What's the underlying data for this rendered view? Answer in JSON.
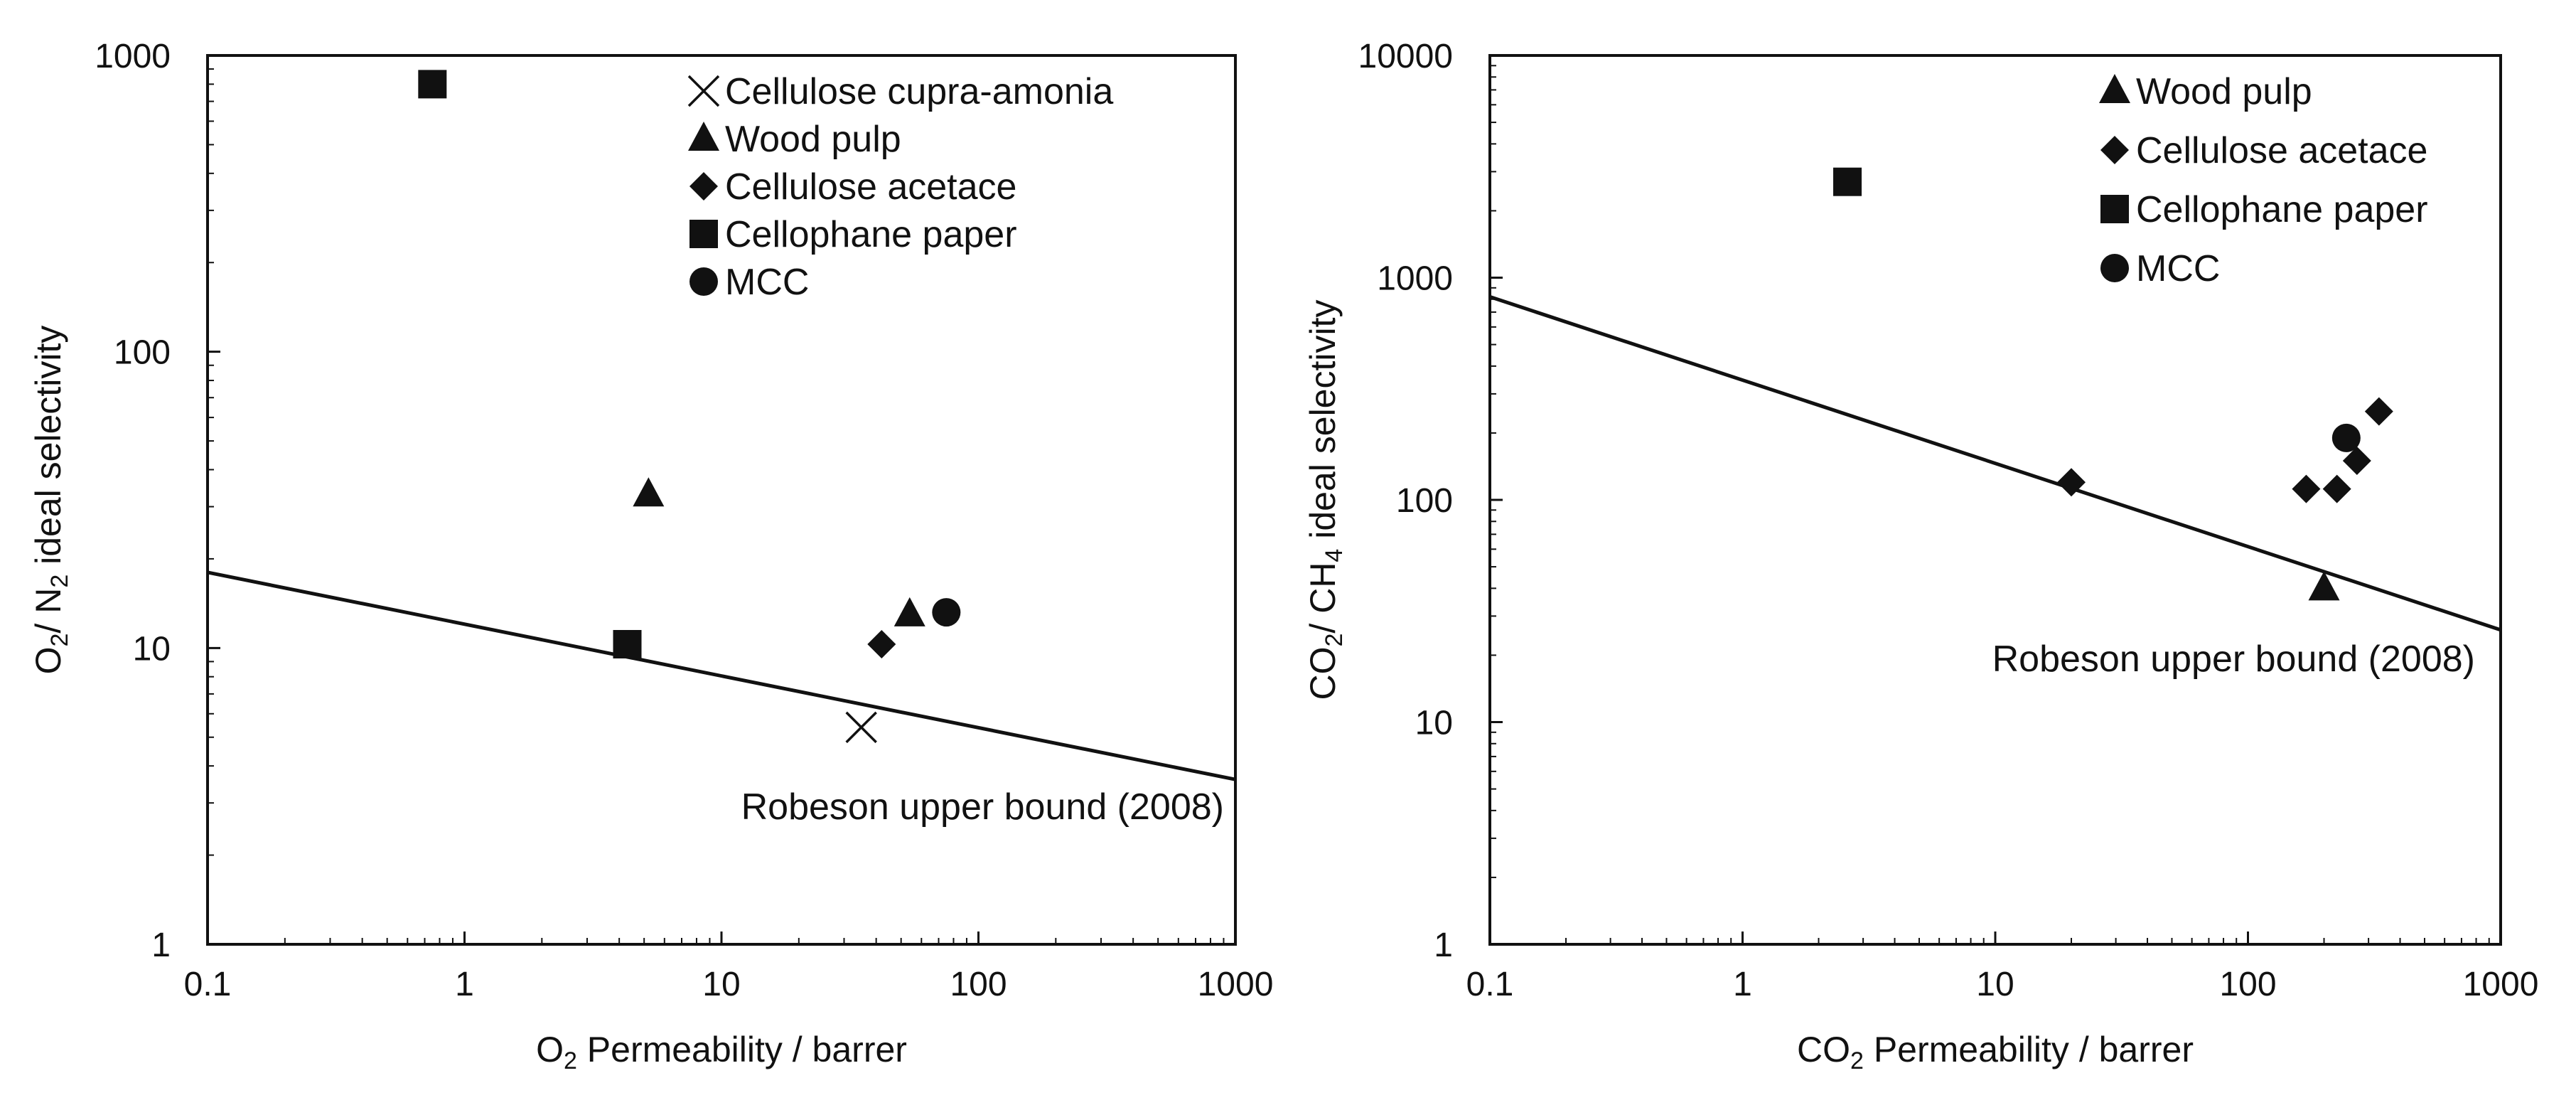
{
  "chart_data": [
    {
      "type": "scatter",
      "x_scale": "log",
      "y_scale": "log",
      "xlim": [
        0.1,
        1000
      ],
      "ylim": [
        1,
        1000
      ],
      "x_ticks": [
        "0.1",
        "1",
        "10",
        "100",
        "1000"
      ],
      "y_ticks": [
        "1",
        "10",
        "100",
        "1000"
      ],
      "xlabel": {
        "pre": "O",
        "sub": "2",
        "post": " Permeability / barrer"
      },
      "ylabel": {
        "pre": "O",
        "sub1": "2",
        "mid": "/ N",
        "sub2": "2",
        "post": " ideal selectivity"
      },
      "series": [
        {
          "name": "Cellulose cupra-amonia",
          "marker": "x",
          "points": [
            [
              35,
              5.4
            ]
          ]
        },
        {
          "name": "Wood pulp",
          "marker": "triangle",
          "points": [
            [
              5.2,
              33
            ],
            [
              54,
              13
            ]
          ]
        },
        {
          "name": "Cellulose acetace",
          "marker": "diamond",
          "points": [
            [
              42,
              10.3
            ]
          ]
        },
        {
          "name": "Cellophane paper",
          "marker": "square",
          "points": [
            [
              0.75,
              800
            ],
            [
              4.3,
              10.3
            ]
          ]
        },
        {
          "name": "MCC",
          "marker": "circle",
          "points": [
            [
              75,
              13.2
            ]
          ]
        }
      ],
      "line": {
        "label": "Robeson upper bound (2008)",
        "points": [
          [
            0.1,
            18
          ],
          [
            1000,
            3.6
          ]
        ]
      }
    },
    {
      "type": "scatter",
      "x_scale": "log",
      "y_scale": "log",
      "xlim": [
        0.1,
        1000
      ],
      "ylim": [
        1,
        10000
      ],
      "x_ticks": [
        "0.1",
        "1",
        "10",
        "100",
        "1000"
      ],
      "y_ticks": [
        "1",
        "10",
        "100",
        "1000",
        "10000"
      ],
      "xlabel": {
        "pre": "CO",
        "sub": "2",
        "post": " Permeability / barrer"
      },
      "ylabel": {
        "pre": "CO",
        "sub1": "2",
        "mid": "/ CH",
        "sub2": "4",
        "post": " ideal selectivity"
      },
      "series": [
        {
          "name": "Wood pulp",
          "marker": "triangle",
          "points": [
            [
              200,
              40
            ]
          ]
        },
        {
          "name": "Cellulose acetace",
          "marker": "diamond",
          "points": [
            [
              20,
              120
            ],
            [
              170,
              112
            ],
            [
              225,
              112
            ],
            [
              270,
              150
            ],
            [
              330,
              250
            ]
          ]
        },
        {
          "name": "Cellophane paper",
          "marker": "square",
          "points": [
            [
              2.6,
              2700
            ]
          ]
        },
        {
          "name": "MCC",
          "marker": "circle",
          "points": [
            [
              245,
              190
            ]
          ]
        }
      ],
      "line": {
        "label": "Robeson upper bound (2008)",
        "points": [
          [
            0.1,
            820
          ],
          [
            1000,
            26
          ]
        ]
      }
    }
  ]
}
